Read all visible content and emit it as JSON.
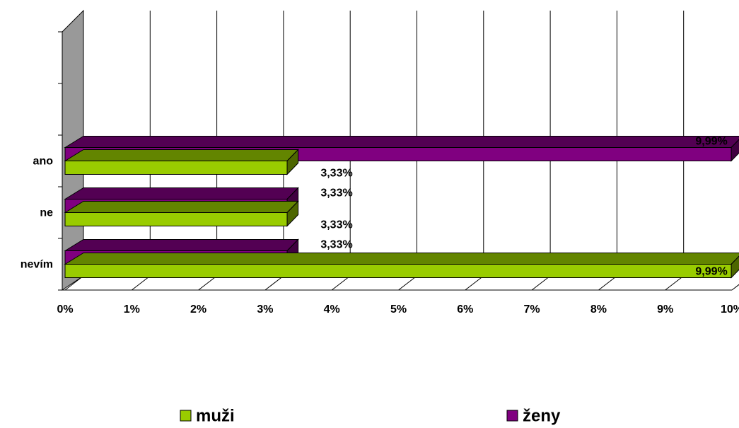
{
  "chart_data": {
    "type": "bar3d_horizontal",
    "categories": [
      "ano",
      "ne",
      "nevím"
    ],
    "series": [
      {
        "name": "muži",
        "color": "#99cc00",
        "values": [
          3.33,
          3.33,
          9.99
        ],
        "value_labels": [
          "3,33%",
          "3,33%",
          "9,99%"
        ]
      },
      {
        "name": "ženy",
        "color": "#800080",
        "values": [
          9.99,
          3.33,
          3.33
        ],
        "value_labels": [
          "9,99%",
          "3,33%",
          "3,33%"
        ]
      }
    ],
    "xlim": [
      0,
      10
    ],
    "xticks": [
      {
        "value": 0,
        "label": "0%"
      },
      {
        "value": 1,
        "label": "1%"
      },
      {
        "value": 2,
        "label": "2%"
      },
      {
        "value": 3,
        "label": "3%"
      },
      {
        "value": 4,
        "label": "4%"
      },
      {
        "value": 5,
        "label": "5%"
      },
      {
        "value": 6,
        "label": "6%"
      },
      {
        "value": 7,
        "label": "7%"
      },
      {
        "value": 8,
        "label": "8%"
      },
      {
        "value": 9,
        "label": "9%"
      },
      {
        "value": 10,
        "label": "10%"
      }
    ],
    "grid": true
  }
}
